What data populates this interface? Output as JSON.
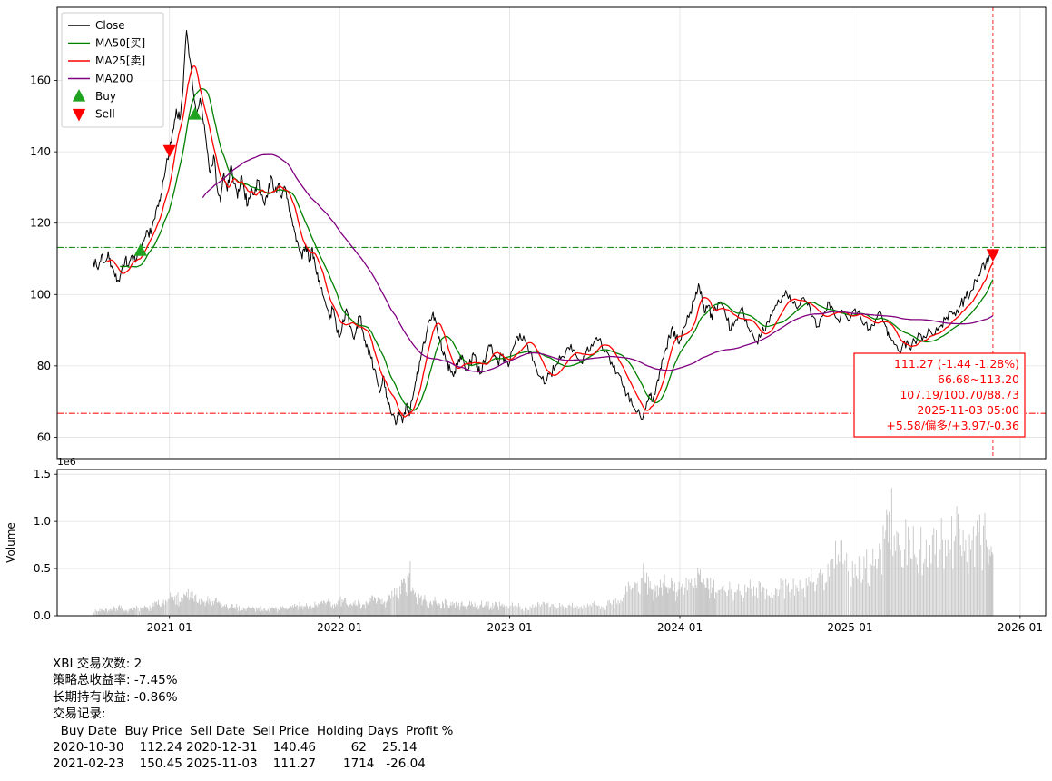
{
  "chart_data": {
    "type": "line",
    "title": "",
    "xlim": [
      2020.34,
      2026.15
    ],
    "xticks": {
      "values": [
        2021,
        2022,
        2023,
        2024,
        2025,
        2026
      ],
      "labels": [
        "2021-01",
        "2022-01",
        "2023-01",
        "2024-01",
        "2025-01",
        "2026-01"
      ]
    },
    "price_panel": {
      "ylim": [
        54,
        180.5
      ],
      "yticks": [
        60,
        80,
        100,
        120,
        140,
        160
      ],
      "hlines": [
        {
          "y": 113.2,
          "color": "#008000",
          "style": "dashdot",
          "name": "upper-level-line"
        },
        {
          "y": 66.68,
          "color": "#ff0000",
          "style": "dashdot",
          "name": "lower-level-line"
        }
      ],
      "vline": {
        "x": 2025.84,
        "color": "#ff0000",
        "style": "dashed"
      }
    },
    "volume_panel": {
      "ylabel": "Volume",
      "offset_label": "1e6",
      "ylim": [
        0,
        1.55
      ],
      "yticks": [
        0.0,
        0.5,
        1.0,
        1.5
      ],
      "bar_color": "#c6c6c6"
    },
    "series": {
      "close": {
        "label": "Close",
        "color": "#000000"
      },
      "mas": [
        {
          "label": "MA50[买]",
          "color": "#008000",
          "window": 31
        },
        {
          "label": "MA25[卖]",
          "color": "#ff0000",
          "window": 15
        },
        {
          "label": "MA200",
          "color": "#800080",
          "window": 124
        }
      ]
    },
    "legend": {
      "entries": [
        {
          "label": "Close",
          "color": "#000000",
          "kind": "line"
        },
        {
          "label": "MA50[买]",
          "color": "#008000",
          "kind": "line"
        },
        {
          "label": "MA25[卖]",
          "color": "#ff0000",
          "kind": "line"
        },
        {
          "label": "MA200",
          "color": "#800080",
          "kind": "line"
        },
        {
          "label": "Buy",
          "color": "#1fa21f",
          "kind": "marker-up"
        },
        {
          "label": "Sell",
          "color": "#ff0000",
          "kind": "marker-down"
        }
      ]
    },
    "markers": {
      "buy": {
        "label": "Buy",
        "color": "#1fa21f",
        "points": [
          [
            2020.83,
            112.24
          ],
          [
            2021.15,
            150.45
          ]
        ]
      },
      "sell": {
        "label": "Sell",
        "color": "#ff0000",
        "points": [
          [
            2021.0,
            140.46
          ],
          [
            2025.84,
            111.27
          ]
        ]
      }
    },
    "annotation": {
      "color": "#ff0000",
      "lines": [
        "111.27 (-1.44 -1.28%)",
        "66.68~113.20",
        "107.19/100.70/88.73",
        "2025-11-03 05:00",
        "+5.58/偏多/+3.97/-0.36"
      ]
    },
    "points": [
      [
        2020.55,
        110,
        0.06
      ],
      [
        2020.58,
        107,
        0.05
      ],
      [
        2020.6,
        111,
        0.07
      ],
      [
        2020.62,
        109,
        0.05
      ],
      [
        2020.64,
        112,
        0.06
      ],
      [
        2020.66,
        108,
        0.05
      ],
      [
        2020.68,
        105,
        0.08
      ],
      [
        2020.7,
        104,
        0.1
      ],
      [
        2020.72,
        107,
        0.07
      ],
      [
        2020.74,
        110,
        0.06
      ],
      [
        2020.76,
        108,
        0.05
      ],
      [
        2020.78,
        111,
        0.06
      ],
      [
        2020.8,
        109,
        0.07
      ],
      [
        2020.83,
        112.2,
        0.09
      ],
      [
        2020.85,
        115,
        0.08
      ],
      [
        2020.87,
        118,
        0.09
      ],
      [
        2020.89,
        117,
        0.08
      ],
      [
        2020.91,
        121,
        0.1
      ],
      [
        2020.93,
        125,
        0.12
      ],
      [
        2020.95,
        128,
        0.1
      ],
      [
        2020.97,
        133,
        0.12
      ],
      [
        2021.0,
        140.5,
        0.18
      ],
      [
        2021.02,
        146,
        0.2
      ],
      [
        2021.04,
        152,
        0.22
      ],
      [
        2021.06,
        149,
        0.15
      ],
      [
        2021.08,
        158,
        0.18
      ],
      [
        2021.1,
        174,
        0.25
      ],
      [
        2021.12,
        166,
        0.2
      ],
      [
        2021.14,
        157,
        0.18
      ],
      [
        2021.16,
        150.5,
        0.15
      ],
      [
        2021.18,
        155,
        0.12
      ],
      [
        2021.2,
        148,
        0.14
      ],
      [
        2021.22,
        141,
        0.16
      ],
      [
        2021.24,
        134,
        0.15
      ],
      [
        2021.26,
        139,
        0.12
      ],
      [
        2021.28,
        130,
        0.14
      ],
      [
        2021.3,
        126,
        0.12
      ],
      [
        2021.32,
        134,
        0.1
      ],
      [
        2021.34,
        129,
        0.09
      ],
      [
        2021.36,
        136,
        0.1
      ],
      [
        2021.38,
        131,
        0.08
      ],
      [
        2021.4,
        127,
        0.09
      ],
      [
        2021.42,
        133,
        0.08
      ],
      [
        2021.44,
        129,
        0.07
      ],
      [
        2021.46,
        125,
        0.09
      ],
      [
        2021.48,
        130,
        0.08
      ],
      [
        2021.5,
        128,
        0.07
      ],
      [
        2021.52,
        132,
        0.08
      ],
      [
        2021.54,
        128,
        0.07
      ],
      [
        2021.56,
        125,
        0.08
      ],
      [
        2021.58,
        129,
        0.07
      ],
      [
        2021.6,
        133,
        0.08
      ],
      [
        2021.62,
        129,
        0.07
      ],
      [
        2021.64,
        131,
        0.07
      ],
      [
        2021.66,
        127,
        0.08
      ],
      [
        2021.68,
        130,
        0.07
      ],
      [
        2021.7,
        125,
        0.08
      ],
      [
        2021.72,
        121,
        0.09
      ],
      [
        2021.74,
        117,
        0.1
      ],
      [
        2021.76,
        113,
        0.1
      ],
      [
        2021.78,
        110,
        0.11
      ],
      [
        2021.8,
        114,
        0.1
      ],
      [
        2021.82,
        109,
        0.1
      ],
      [
        2021.84,
        113,
        0.09
      ],
      [
        2021.86,
        107,
        0.11
      ],
      [
        2021.88,
        104,
        0.12
      ],
      [
        2021.9,
        100,
        0.13
      ],
      [
        2021.92,
        97,
        0.12
      ],
      [
        2021.94,
        93,
        0.14
      ],
      [
        2021.96,
        96,
        0.12
      ],
      [
        2021.98,
        91,
        0.13
      ],
      [
        2022.0,
        88,
        0.15
      ],
      [
        2022.02,
        93,
        0.14
      ],
      [
        2022.04,
        96,
        0.13
      ],
      [
        2022.06,
        91,
        0.12
      ],
      [
        2022.08,
        88,
        0.14
      ],
      [
        2022.1,
        91,
        0.12
      ],
      [
        2022.12,
        94,
        0.13
      ],
      [
        2022.14,
        89,
        0.12
      ],
      [
        2022.16,
        86,
        0.14
      ],
      [
        2022.18,
        83,
        0.15
      ],
      [
        2022.2,
        79,
        0.16
      ],
      [
        2022.22,
        76,
        0.15
      ],
      [
        2022.24,
        73,
        0.17
      ],
      [
        2022.26,
        77,
        0.14
      ],
      [
        2022.28,
        71,
        0.16
      ],
      [
        2022.3,
        67,
        0.18
      ],
      [
        2022.33,
        63.5,
        0.22
      ],
      [
        2022.35,
        67,
        0.18
      ],
      [
        2022.37,
        64,
        0.35
      ],
      [
        2022.39,
        69,
        0.25
      ],
      [
        2022.41,
        66,
        0.45
      ],
      [
        2022.43,
        71,
        0.3
      ],
      [
        2022.45,
        76,
        0.2
      ],
      [
        2022.47,
        81,
        0.18
      ],
      [
        2022.49,
        86,
        0.16
      ],
      [
        2022.51,
        89,
        0.15
      ],
      [
        2022.53,
        93,
        0.14
      ],
      [
        2022.55,
        95,
        0.16
      ],
      [
        2022.57,
        91,
        0.13
      ],
      [
        2022.59,
        87,
        0.12
      ],
      [
        2022.61,
        83,
        0.13
      ],
      [
        2022.63,
        81,
        0.12
      ],
      [
        2022.65,
        79,
        0.11
      ],
      [
        2022.67,
        77,
        0.12
      ],
      [
        2022.69,
        80,
        0.11
      ],
      [
        2022.71,
        83,
        0.1
      ],
      [
        2022.73,
        81,
        0.11
      ],
      [
        2022.75,
        79,
        0.1
      ],
      [
        2022.77,
        81,
        0.11
      ],
      [
        2022.79,
        83,
        0.1
      ],
      [
        2022.81,
        80,
        0.11
      ],
      [
        2022.83,
        78,
        0.12
      ],
      [
        2022.85,
        81,
        0.1
      ],
      [
        2022.87,
        84,
        0.11
      ],
      [
        2022.89,
        86,
        0.1
      ],
      [
        2022.91,
        83,
        0.11
      ],
      [
        2022.93,
        81,
        0.1
      ],
      [
        2022.95,
        83,
        0.11
      ],
      [
        2022.97,
        82,
        0.1
      ],
      [
        2023.0,
        81,
        0.1
      ],
      [
        2023.03,
        86,
        0.11
      ],
      [
        2023.06,
        89,
        0.1
      ],
      [
        2023.09,
        87,
        0.09
      ],
      [
        2023.12,
        84,
        0.1
      ],
      [
        2023.15,
        80,
        0.11
      ],
      [
        2023.18,
        77,
        0.1
      ],
      [
        2023.21,
        75,
        0.12
      ],
      [
        2023.24,
        78,
        0.1
      ],
      [
        2023.27,
        80,
        0.09
      ],
      [
        2023.3,
        82,
        0.1
      ],
      [
        2023.33,
        84,
        0.09
      ],
      [
        2023.36,
        86,
        0.1
      ],
      [
        2023.39,
        83,
        0.09
      ],
      [
        2023.42,
        81,
        0.1
      ],
      [
        2023.45,
        84,
        0.09
      ],
      [
        2023.48,
        86,
        0.1
      ],
      [
        2023.51,
        88,
        0.11
      ],
      [
        2023.54,
        86,
        0.1
      ],
      [
        2023.57,
        84,
        0.11
      ],
      [
        2023.6,
        81,
        0.12
      ],
      [
        2023.63,
        78,
        0.13
      ],
      [
        2023.66,
        75,
        0.15
      ],
      [
        2023.69,
        72,
        0.25
      ],
      [
        2023.72,
        69,
        0.3
      ],
      [
        2023.75,
        67,
        0.35
      ],
      [
        2023.78,
        65,
        0.4
      ],
      [
        2023.8,
        68,
        0.35
      ],
      [
        2023.82,
        72,
        0.3
      ],
      [
        2023.84,
        70,
        0.28
      ],
      [
        2023.86,
        74,
        0.32
      ],
      [
        2023.88,
        78,
        0.3
      ],
      [
        2023.9,
        82,
        0.35
      ],
      [
        2023.92,
        85,
        0.3
      ],
      [
        2023.94,
        88,
        0.28
      ],
      [
        2023.96,
        90,
        0.3
      ],
      [
        2023.98,
        88,
        0.25
      ],
      [
        2024.0,
        87,
        0.28
      ],
      [
        2024.03,
        91,
        0.3
      ],
      [
        2024.06,
        95,
        0.35
      ],
      [
        2024.09,
        99,
        0.4
      ],
      [
        2024.11,
        103,
        0.45
      ],
      [
        2024.13,
        99,
        0.35
      ],
      [
        2024.15,
        95,
        0.3
      ],
      [
        2024.17,
        97,
        0.28
      ],
      [
        2024.19,
        93,
        0.3
      ],
      [
        2024.21,
        96,
        0.25
      ],
      [
        2024.24,
        98,
        0.28
      ],
      [
        2024.27,
        94,
        0.25
      ],
      [
        2024.3,
        90,
        0.28
      ],
      [
        2024.33,
        93,
        0.25
      ],
      [
        2024.36,
        96,
        0.22
      ],
      [
        2024.39,
        93,
        0.25
      ],
      [
        2024.42,
        90,
        0.28
      ],
      [
        2024.45,
        87,
        0.3
      ],
      [
        2024.48,
        89,
        0.25
      ],
      [
        2024.51,
        92,
        0.28
      ],
      [
        2024.54,
        94,
        0.25
      ],
      [
        2024.57,
        97,
        0.28
      ],
      [
        2024.6,
        99,
        0.3
      ],
      [
        2024.63,
        100,
        0.32
      ],
      [
        2024.66,
        98,
        0.28
      ],
      [
        2024.69,
        96,
        0.3
      ],
      [
        2024.72,
        99,
        0.28
      ],
      [
        2024.75,
        97,
        0.32
      ],
      [
        2024.78,
        94,
        0.35
      ],
      [
        2024.81,
        91,
        0.4
      ],
      [
        2024.84,
        94,
        0.45
      ],
      [
        2024.87,
        98,
        0.55
      ],
      [
        2024.9,
        96,
        0.6
      ],
      [
        2024.93,
        93,
        0.65
      ],
      [
        2024.96,
        95,
        0.55
      ],
      [
        2025.0,
        93,
        0.5
      ],
      [
        2025.03,
        96,
        0.55
      ],
      [
        2025.06,
        94,
        0.6
      ],
      [
        2025.09,
        92,
        0.5
      ],
      [
        2025.12,
        90,
        0.55
      ],
      [
        2025.15,
        93,
        0.6
      ],
      [
        2025.18,
        95,
        0.7
      ],
      [
        2025.21,
        91,
        0.9
      ],
      [
        2025.23,
        88,
        1.1
      ],
      [
        2025.26,
        86,
        0.85
      ],
      [
        2025.29,
        84,
        0.75
      ],
      [
        2025.32,
        87,
        0.7
      ],
      [
        2025.35,
        85,
        0.8
      ],
      [
        2025.38,
        87,
        0.65
      ],
      [
        2025.41,
        89,
        0.7
      ],
      [
        2025.44,
        88,
        0.6
      ],
      [
        2025.47,
        90,
        0.75
      ],
      [
        2025.5,
        89,
        0.65
      ],
      [
        2025.53,
        91,
        0.7
      ],
      [
        2025.56,
        93,
        0.8
      ],
      [
        2025.59,
        95,
        0.7
      ],
      [
        2025.62,
        94,
        0.85
      ],
      [
        2025.65,
        97,
        0.75
      ],
      [
        2025.68,
        99,
        0.8
      ],
      [
        2025.71,
        101,
        0.7
      ],
      [
        2025.74,
        104,
        0.85
      ],
      [
        2025.77,
        107,
        0.75
      ],
      [
        2025.8,
        109,
        0.8
      ],
      [
        2025.82,
        111,
        0.7
      ],
      [
        2025.84,
        111.27,
        0.65
      ]
    ]
  },
  "stats": {
    "symbol_line": "XBI 交易次数: 2",
    "strategy_return_line": "策略总收益率: -7.45%",
    "hold_return_line": "长期持有收益: -0.86%",
    "records_title": "交易记录:",
    "table_header": "  Buy Date  Buy Price  Sell Date  Sell Price  Holding Days  Profit %",
    "rows": [
      "2020-10-30    112.24 2020-12-31    140.46         62    25.14",
      "2021-02-23    150.45 2025-11-03    111.27       1714   -26.04"
    ]
  }
}
